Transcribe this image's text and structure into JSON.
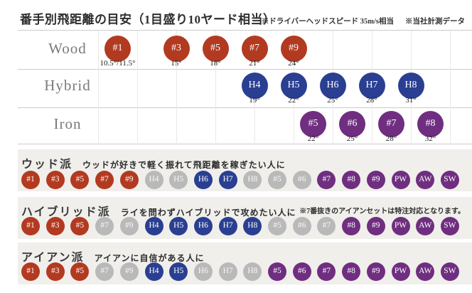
{
  "header": {
    "title": "番手別飛距離の目安（1目盛り10ヤード相当）",
    "note1": "※ドライバーヘッドスピード 35m/s相当",
    "note2": "※当社計測データ"
  },
  "colors": {
    "wood": "#b23a21",
    "hybrid": "#2a3f92",
    "iron": "#6f2e80",
    "inactive": "#b9b9b9",
    "band_bg": "#f0efeb",
    "separator": "#cccccc",
    "gridline": "#ebe9e5"
  },
  "chart_data": {
    "type": "scatter",
    "title": "番手別飛距離の目安",
    "x_axis": {
      "note": "1目盛り10ヤード相当",
      "yards_per_gridline": 10,
      "gridlines": 10
    },
    "rows": [
      {
        "label": "Wood",
        "color_key": "wood",
        "clubs": [
          {
            "name": "#1",
            "loft": "10.5°/11.5°",
            "pos": 0.5
          },
          {
            "name": "#3",
            "loft": "15°",
            "pos": 2
          },
          {
            "name": "#5",
            "loft": "18°",
            "pos": 3
          },
          {
            "name": "#7",
            "loft": "21°",
            "pos": 4
          },
          {
            "name": "#9",
            "loft": "24°",
            "pos": 5
          }
        ]
      },
      {
        "label": "Hybrid",
        "color_key": "hybrid",
        "clubs": [
          {
            "name": "H4",
            "loft": "19°",
            "pos": 4
          },
          {
            "name": "H5",
            "loft": "22°",
            "pos": 5
          },
          {
            "name": "H6",
            "loft": "25°",
            "pos": 6
          },
          {
            "name": "H7",
            "loft": "28°",
            "pos": 7
          },
          {
            "name": "H8",
            "loft": "31°",
            "pos": 8
          }
        ]
      },
      {
        "label": "Iron",
        "color_key": "iron",
        "clubs": [
          {
            "name": "#5",
            "loft": "22°",
            "pos": 5.5
          },
          {
            "name": "#6",
            "loft": "25°",
            "pos": 6.5
          },
          {
            "name": "#7",
            "loft": "28°",
            "pos": 7.5
          },
          {
            "name": "#8",
            "loft": "32°",
            "pos": 8.5
          }
        ]
      }
    ]
  },
  "sections": [
    {
      "id": "wood",
      "name": "ウッド派",
      "desc": "ウッドが好きで軽く振れて飛距離を稼ぎたい人に",
      "note": "",
      "clubs": [
        {
          "label": "#1",
          "type": "wood"
        },
        {
          "label": "#3",
          "type": "wood"
        },
        {
          "label": "#5",
          "type": "wood"
        },
        {
          "label": "#7",
          "type": "wood"
        },
        {
          "label": "#9",
          "type": "wood"
        },
        {
          "label": "H4",
          "type": "inactive"
        },
        {
          "label": "H5",
          "type": "inactive"
        },
        {
          "label": "H6",
          "type": "hybrid"
        },
        {
          "label": "H7",
          "type": "hybrid"
        },
        {
          "label": "H8",
          "type": "inactive"
        },
        {
          "label": "#5",
          "type": "inactive"
        },
        {
          "label": "#6",
          "type": "inactive"
        },
        {
          "label": "#7",
          "type": "iron"
        },
        {
          "label": "#8",
          "type": "iron"
        },
        {
          "label": "#9",
          "type": "iron"
        },
        {
          "label": "PW",
          "type": "iron"
        },
        {
          "label": "AW",
          "type": "iron"
        },
        {
          "label": "SW",
          "type": "iron"
        }
      ]
    },
    {
      "id": "hybrid",
      "name": "ハイブリッド派",
      "desc": "ライを問わずハイブリッドで攻めたい人に",
      "note": "※7番抜きのアイアンセットは特注対応となります。",
      "clubs": [
        {
          "label": "#1",
          "type": "wood"
        },
        {
          "label": "#3",
          "type": "wood"
        },
        {
          "label": "#5",
          "type": "wood"
        },
        {
          "label": "#7",
          "type": "inactive"
        },
        {
          "label": "#9",
          "type": "inactive"
        },
        {
          "label": "H4",
          "type": "hybrid"
        },
        {
          "label": "H5",
          "type": "hybrid"
        },
        {
          "label": "H6",
          "type": "hybrid"
        },
        {
          "label": "H7",
          "type": "hybrid"
        },
        {
          "label": "H8",
          "type": "hybrid"
        },
        {
          "label": "#5",
          "type": "inactive"
        },
        {
          "label": "#6",
          "type": "inactive"
        },
        {
          "label": "#7",
          "type": "inactive"
        },
        {
          "label": "#8",
          "type": "iron"
        },
        {
          "label": "#9",
          "type": "iron"
        },
        {
          "label": "PW",
          "type": "iron"
        },
        {
          "label": "AW",
          "type": "iron"
        },
        {
          "label": "SW",
          "type": "iron"
        }
      ]
    },
    {
      "id": "iron",
      "name": "アイアン派",
      "desc": "アイアンに自信がある人に",
      "note": "",
      "clubs": [
        {
          "label": "#1",
          "type": "wood"
        },
        {
          "label": "#3",
          "type": "wood"
        },
        {
          "label": "#5",
          "type": "wood"
        },
        {
          "label": "#7",
          "type": "inactive"
        },
        {
          "label": "#9",
          "type": "inactive"
        },
        {
          "label": "H4",
          "type": "hybrid"
        },
        {
          "label": "H5",
          "type": "hybrid"
        },
        {
          "label": "H6",
          "type": "inactive"
        },
        {
          "label": "H7",
          "type": "inactive"
        },
        {
          "label": "H8",
          "type": "inactive"
        },
        {
          "label": "#5",
          "type": "iron"
        },
        {
          "label": "#6",
          "type": "iron"
        },
        {
          "label": "#7",
          "type": "iron"
        },
        {
          "label": "#8",
          "type": "iron"
        },
        {
          "label": "#9",
          "type": "iron"
        },
        {
          "label": "PW",
          "type": "iron"
        },
        {
          "label": "AW",
          "type": "iron"
        },
        {
          "label": "SW",
          "type": "iron"
        }
      ]
    }
  ]
}
